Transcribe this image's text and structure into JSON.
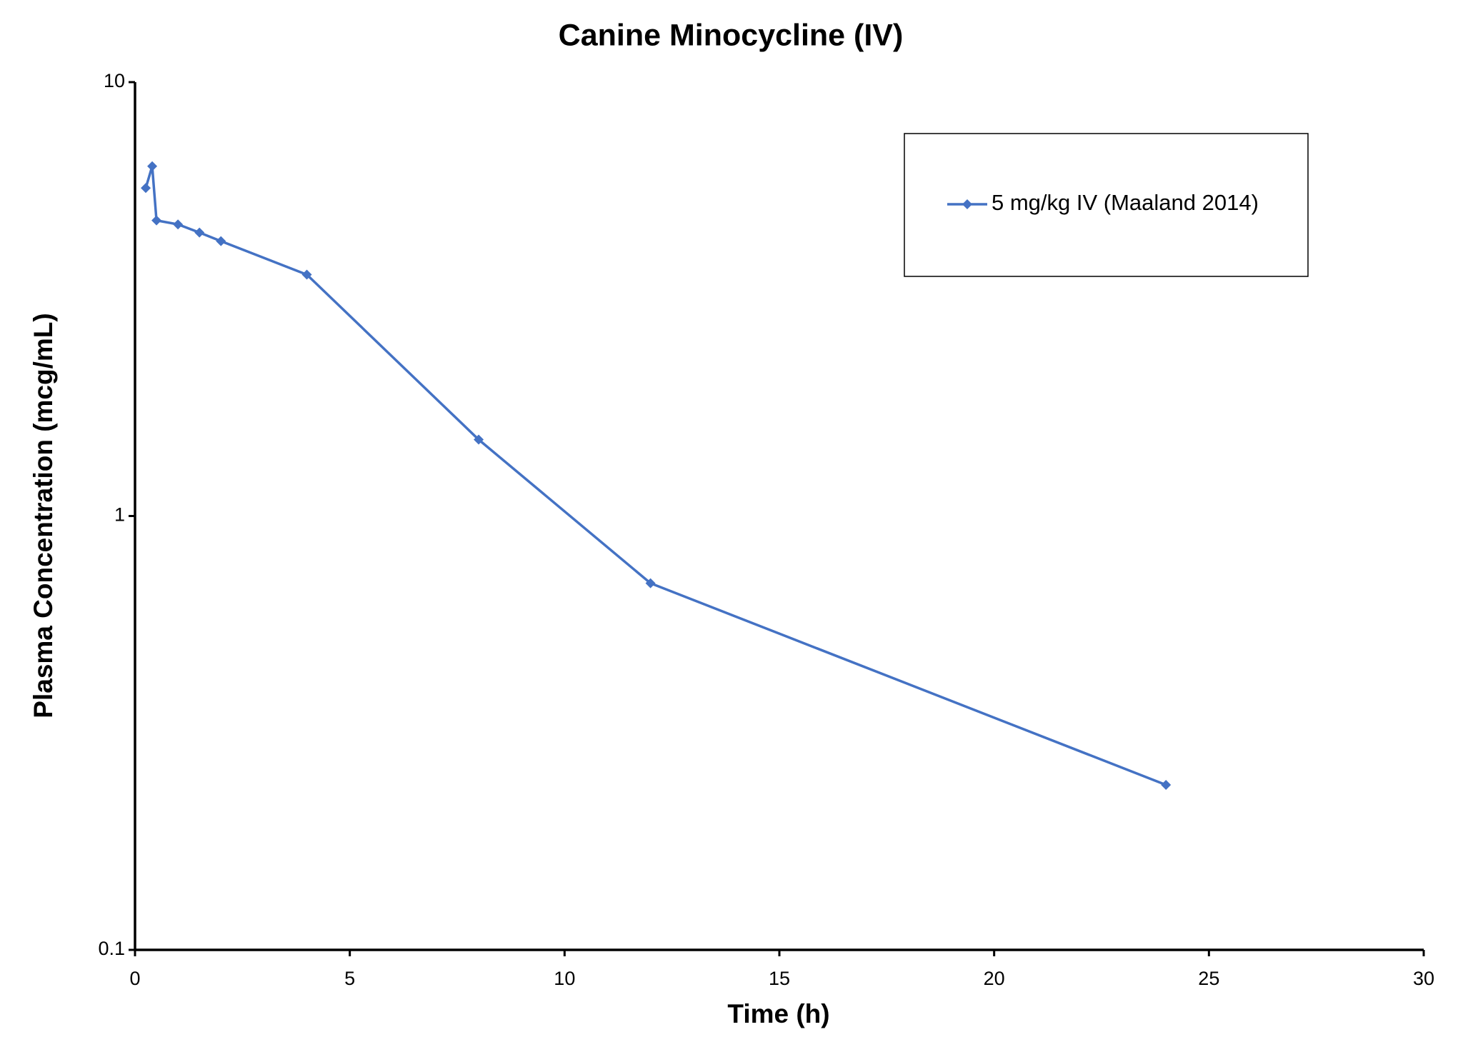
{
  "chart_data": {
    "type": "line",
    "title": "Canine Minocycline (IV)",
    "x_label": "Time (h)",
    "y_label": "Plasma Concentration (mcg/mL)",
    "x": [
      0.25,
      0.4,
      0.5,
      1,
      1.5,
      2,
      4,
      8,
      12,
      24
    ],
    "series": [
      {
        "name": "5 mg/kg IV (Maaland 2014)",
        "color": "#4472c4",
        "values": [
          5.7,
          6.4,
          4.8,
          4.7,
          4.5,
          4.3,
          3.6,
          1.5,
          0.7,
          0.24
        ]
      }
    ],
    "xlim": [
      0,
      30
    ],
    "xticks": [
      0,
      5,
      10,
      15,
      20,
      25,
      30
    ],
    "ylim": [
      0.1,
      10
    ],
    "yticks": [
      0.1,
      1,
      10
    ],
    "y_scale": "log",
    "grid": false,
    "legend_position": "upper right"
  }
}
